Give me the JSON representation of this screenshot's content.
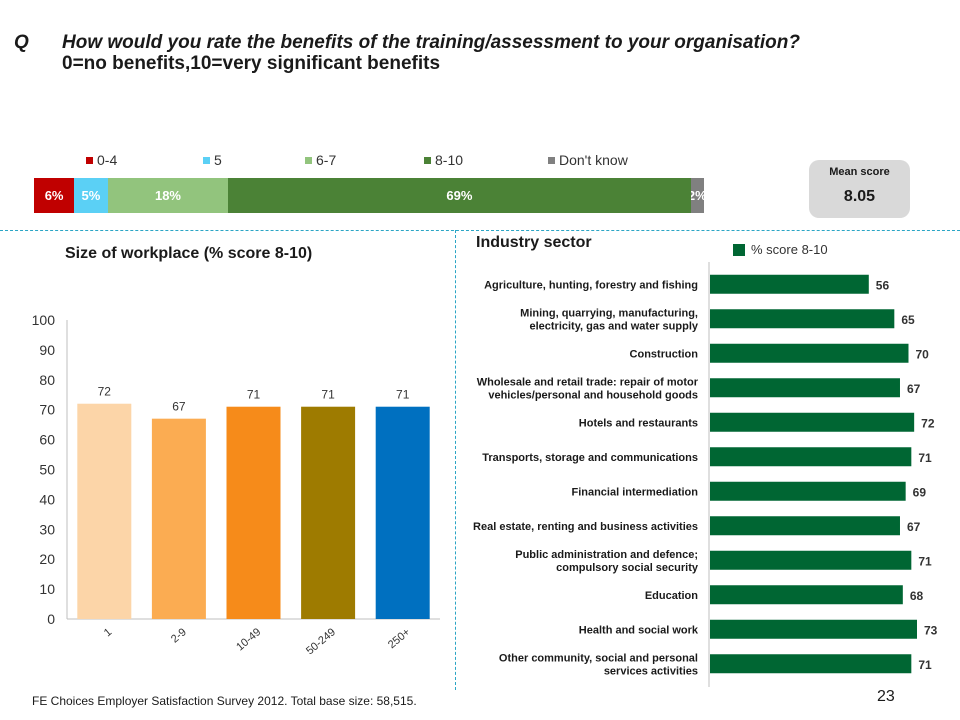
{
  "question": {
    "letter": "Q",
    "line1": "How would you rate the benefits of the training/assessment to your organisation?",
    "line2": "0=no benefits,10=very significant benefits"
  },
  "mean_score": {
    "label": "Mean score",
    "value": "8.05"
  },
  "footer": "FE Choices Employer Satisfaction Survey 2012.  Total base size: 58,515.",
  "page_number": "23",
  "colors": {
    "seg_0_4": "#c00000",
    "seg_5": "#5bd0f5",
    "seg_6_7": "#92c47d",
    "seg_8_10": "#4b8236",
    "seg_dk": "#808080",
    "industry_bar": "#006633"
  },
  "chart_data": [
    {
      "type": "bar",
      "orientation": "horizontal-stacked",
      "legend": [
        "0-4",
        "5",
        "6-7",
        "8-10",
        "Don't know"
      ],
      "legend_position": "top",
      "values": [
        6,
        5,
        18,
        69,
        2
      ],
      "labels": [
        "6%",
        "5%",
        "18%",
        "69%",
        "2%"
      ]
    },
    {
      "type": "bar",
      "title": "Size of workplace (% score 8-10)",
      "categories": [
        "1",
        "2-9",
        "10-49",
        "50-249",
        "250+"
      ],
      "values": [
        72,
        67,
        71,
        71,
        71
      ],
      "bar_colors": [
        "#fcd5a8",
        "#fbac52",
        "#f68b1a",
        "#9e7b00",
        "#0070c0"
      ],
      "ylim": [
        0,
        100
      ],
      "yticks": [
        0,
        10,
        20,
        30,
        40,
        50,
        60,
        70,
        80,
        90,
        100
      ],
      "grid": false
    },
    {
      "type": "bar",
      "orientation": "horizontal",
      "title": "Industry sector",
      "legend": [
        "% score 8-10"
      ],
      "categories": [
        [
          "Agriculture, hunting, forestry and fishing"
        ],
        [
          "Mining, quarrying, manufacturing,",
          "electricity, gas and water supply"
        ],
        [
          "Construction"
        ],
        [
          "Wholesale and retail trade: repair of motor",
          "vehicles/personal and household goods"
        ],
        [
          "Hotels and restaurants"
        ],
        [
          "Transports, storage and communications"
        ],
        [
          "Financial intermediation"
        ],
        [
          "Real estate, renting and business activities"
        ],
        [
          "Public administration and defence;",
          "compulsory social security"
        ],
        [
          "Education"
        ],
        [
          "Health and social work"
        ],
        [
          "Other community, social and personal",
          "services activities"
        ]
      ],
      "values": [
        56,
        65,
        70,
        67,
        72,
        71,
        69,
        67,
        71,
        68,
        73,
        71
      ],
      "xlim": [
        0,
        73
      ]
    }
  ]
}
